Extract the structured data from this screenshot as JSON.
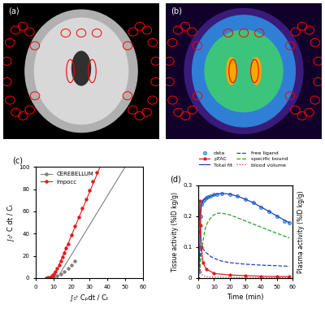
{
  "images": [
    {
      "label": "(a)"
    },
    {
      "label": "(b)"
    }
  ],
  "chart_data": [
    {
      "label": "(c)",
      "type": "scatter",
      "xlabel": "∫₀ᵗ Cₚdt / Cₜ",
      "ylabel": "∫₀ᵗ C dt / Cₜ",
      "xlim": [
        0,
        60
      ],
      "xticks": [
        0,
        10,
        20,
        30,
        40,
        50,
        60
      ],
      "ylim": [
        0,
        100
      ],
      "yticks": [
        0,
        20,
        40,
        60,
        80,
        100
      ],
      "legend": "upper left",
      "series": [
        {
          "name": "CEREBELLUM",
          "color": "#808080",
          "marker": "circle",
          "x": [
            6,
            8,
            10,
            12,
            14,
            16,
            18,
            20,
            22
          ],
          "values": [
            0,
            0.5,
            1,
            2,
            4,
            6,
            9,
            12,
            15
          ],
          "fit_x": [
            12,
            50
          ],
          "fit_values": [
            0,
            100
          ]
        },
        {
          "name": "Impocc",
          "color": "#e41a1c",
          "marker": "circle",
          "x": [
            6,
            7,
            8,
            9,
            10,
            11,
            12,
            13,
            14,
            15,
            16,
            17,
            18,
            20,
            22,
            24,
            26,
            28,
            30,
            32,
            34
          ],
          "values": [
            0,
            0.5,
            1,
            2,
            4,
            6,
            9,
            12,
            15,
            19,
            23,
            27,
            31,
            39,
            47,
            55,
            63,
            71,
            79,
            87,
            95
          ],
          "fit_x": [
            10,
            36
          ],
          "fit_values": [
            0,
            100
          ]
        }
      ]
    },
    {
      "label": "(d)",
      "type": "line",
      "xlabel": "Time (min)",
      "ylabel": "Tissue activity (%ID kg/g)",
      "y2label": "Plasma activity (%ID kg/g)",
      "xlim": [
        0,
        60
      ],
      "xticks": [
        0,
        10,
        20,
        30,
        40,
        50,
        60
      ],
      "ylim": [
        0,
        0.3
      ],
      "yticks": [
        0,
        0.1,
        0.2,
        0.3
      ],
      "y2lim": [
        0,
        0.3
      ],
      "y2ticks": [],
      "legend": "upper right",
      "series": [
        {
          "name": "data",
          "type": "scatter",
          "color": "#5bc0eb",
          "marker": "circle",
          "x": [
            0.5,
            1,
            1.5,
            2,
            3,
            4,
            5,
            6,
            8,
            10,
            12,
            15,
            20,
            25,
            30,
            35,
            40,
            45,
            50,
            55,
            58
          ],
          "values": [
            0.02,
            0.1,
            0.2,
            0.24,
            0.25,
            0.255,
            0.26,
            0.262,
            0.265,
            0.27,
            0.272,
            0.275,
            0.272,
            0.265,
            0.255,
            0.245,
            0.23,
            0.215,
            0.2,
            0.185,
            0.18
          ]
        },
        {
          "name": "pTAC",
          "type": "line",
          "color": "#e41a1c",
          "marker": "circle",
          "line_style": "solid",
          "axis": "y2",
          "x": [
            0,
            0.5,
            1,
            1.5,
            2,
            3,
            5,
            10,
            20,
            30,
            40,
            50,
            58
          ],
          "values": [
            0,
            0.15,
            0.25,
            0.17,
            0.1,
            0.05,
            0.03,
            0.015,
            0.01,
            0.008,
            0.006,
            0.005,
            0.005
          ]
        },
        {
          "name": "Total fit",
          "type": "line",
          "color": "#1f3fbf",
          "line_style": "solid",
          "x": [
            0,
            0.5,
            1,
            1.5,
            2,
            3,
            4,
            5,
            6,
            8,
            10,
            12,
            15,
            20,
            25,
            30,
            35,
            40,
            45,
            50,
            55,
            58
          ],
          "values": [
            0,
            0.03,
            0.11,
            0.2,
            0.235,
            0.25,
            0.255,
            0.258,
            0.261,
            0.265,
            0.269,
            0.272,
            0.274,
            0.272,
            0.265,
            0.255,
            0.244,
            0.23,
            0.216,
            0.201,
            0.187,
            0.179
          ]
        },
        {
          "name": "free ligand",
          "type": "line",
          "color": "#1f3fbf",
          "line_style": "dashed",
          "x": [
            0,
            1,
            2,
            3,
            4,
            6,
            8,
            10,
            15,
            20,
            30,
            40,
            50,
            58
          ],
          "values": [
            0,
            0.06,
            0.1,
            0.095,
            0.088,
            0.078,
            0.07,
            0.064,
            0.055,
            0.05,
            0.045,
            0.042,
            0.04,
            0.038
          ]
        },
        {
          "name": "specific bound",
          "type": "line",
          "color": "#2ca02c",
          "line_style": "dashed",
          "x": [
            0,
            1,
            2,
            3,
            4,
            5,
            6,
            8,
            10,
            12,
            15,
            20,
            25,
            30,
            35,
            40,
            45,
            50,
            58
          ],
          "values": [
            0,
            0.03,
            0.08,
            0.12,
            0.15,
            0.17,
            0.18,
            0.195,
            0.205,
            0.21,
            0.21,
            0.205,
            0.195,
            0.185,
            0.175,
            0.165,
            0.155,
            0.145,
            0.13
          ]
        },
        {
          "name": "blood volume",
          "type": "line",
          "color": "#e41a1c",
          "line_style": "dotted",
          "x": [
            0,
            0.5,
            1,
            1.5,
            2,
            3,
            5,
            10,
            20,
            40,
            58
          ],
          "values": [
            0,
            0.025,
            0.04,
            0.025,
            0.015,
            0.008,
            0.005,
            0.003,
            0.002,
            0.001,
            0.001
          ]
        }
      ]
    }
  ]
}
